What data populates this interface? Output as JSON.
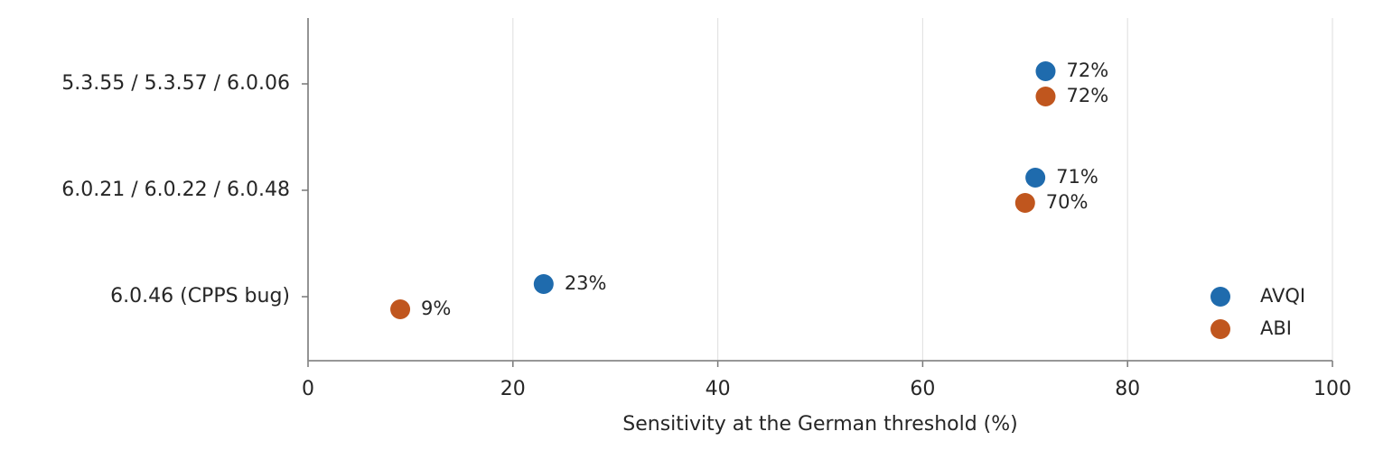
{
  "chart_data": {
    "type": "dot",
    "orientation": "horizontal",
    "xlabel": "Sensitivity at the German threshold (%)",
    "categories": [
      "5.3.55 / 5.3.57 / 6.0.06",
      "6.0.21 / 6.0.22 / 6.0.48",
      "6.0.46 (CPPS bug)"
    ],
    "series": [
      {
        "name": "AVQI",
        "color": "#1f6bad",
        "values": [
          72,
          71,
          23
        ],
        "value_labels": [
          "72%",
          "71%",
          "23%"
        ]
      },
      {
        "name": "ABI",
        "color": "#c0561e",
        "values": [
          72,
          70,
          9
        ],
        "value_labels": [
          "72%",
          "70%",
          "9%"
        ]
      }
    ],
    "xlim": [
      0,
      100
    ],
    "xticks": [
      0,
      20,
      40,
      60,
      80,
      100
    ],
    "grid": true,
    "legend": "lower right"
  }
}
